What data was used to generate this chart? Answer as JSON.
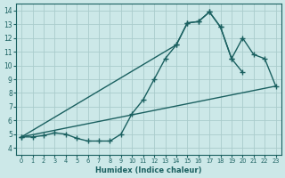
{
  "xlabel": "Humidex (Indice chaleur)",
  "xlim": [
    -0.5,
    23.5
  ],
  "ylim": [
    3.5,
    14.5
  ],
  "xticks": [
    0,
    1,
    2,
    3,
    4,
    5,
    6,
    7,
    8,
    9,
    10,
    11,
    12,
    13,
    14,
    15,
    16,
    17,
    18,
    19,
    20,
    21,
    22,
    23
  ],
  "yticks": [
    4,
    5,
    6,
    7,
    8,
    9,
    10,
    11,
    12,
    13,
    14
  ],
  "bg_color": "#cce8e8",
  "grid_color": "#aacccc",
  "line_color": "#1a6060",
  "line1_x": [
    0,
    1,
    2,
    3,
    4,
    5,
    6,
    7,
    8,
    9,
    10,
    11,
    12,
    13,
    14,
    15,
    16,
    17,
    18,
    19,
    20
  ],
  "line1_y": [
    4.8,
    4.8,
    4.9,
    5.1,
    5.0,
    4.7,
    4.5,
    4.5,
    4.5,
    5.0,
    6.5,
    7.5,
    9.0,
    10.5,
    11.5,
    13.1,
    13.2,
    13.9,
    12.8,
    10.5,
    9.5
  ],
  "line2_x": [
    0,
    14,
    15,
    16,
    17,
    18,
    19,
    20,
    21,
    22,
    23
  ],
  "line2_y": [
    4.8,
    11.5,
    13.1,
    13.2,
    13.9,
    12.8,
    10.5,
    12.0,
    10.8,
    10.5,
    8.5
  ],
  "line3_x": [
    0,
    23
  ],
  "line3_y": [
    4.8,
    8.5
  ],
  "marker_size": 4,
  "linewidth": 1.0
}
